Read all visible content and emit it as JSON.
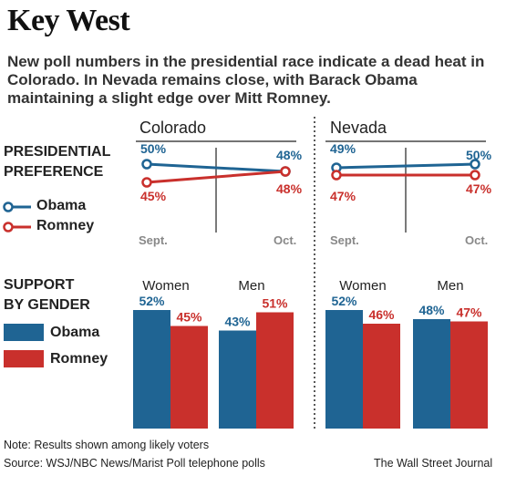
{
  "header": {
    "title": "Key West",
    "subtitle": "New poll numbers in the presidential race indicate a dead heat in Colorado. In Nevada remains close, with Barack Obama maintaining a slight edge over Mitt Romney."
  },
  "sections": {
    "preference_label_line1": "PRESIDENTIAL",
    "preference_label_line2": "PREFERENCE",
    "gender_label_line1": "SUPPORT",
    "gender_label_line2": "BY GENDER"
  },
  "legend": {
    "obama": "Obama",
    "romney": "Romney"
  },
  "colors": {
    "obama": "#1f6493",
    "romney": "#c9302c",
    "divider": "#222222",
    "tick": "#888888"
  },
  "chart_data": [
    {
      "type": "line",
      "state": "Colorado",
      "x": [
        "Sept.",
        "Oct."
      ],
      "series": [
        {
          "name": "Obama",
          "values": [
            50,
            48
          ],
          "labels": [
            "50%",
            "48%"
          ]
        },
        {
          "name": "Romney",
          "values": [
            45,
            48
          ],
          "labels": [
            "45%",
            "48%"
          ]
        }
      ]
    },
    {
      "type": "line",
      "state": "Nevada",
      "x": [
        "Sept.",
        "Oct."
      ],
      "series": [
        {
          "name": "Obama",
          "values": [
            49,
            50
          ],
          "labels": [
            "49%",
            "50%"
          ]
        },
        {
          "name": "Romney",
          "values": [
            47,
            47
          ],
          "labels": [
            "47%",
            "47%"
          ]
        }
      ]
    },
    {
      "type": "bar",
      "state": "Colorado",
      "categories": [
        "Women",
        "Men"
      ],
      "series": [
        {
          "name": "Obama",
          "values": [
            52,
            43
          ],
          "labels": [
            "52%",
            "43%"
          ]
        },
        {
          "name": "Romney",
          "values": [
            45,
            51
          ],
          "labels": [
            "45%",
            "51%"
          ]
        }
      ]
    },
    {
      "type": "bar",
      "state": "Nevada",
      "categories": [
        "Women",
        "Men"
      ],
      "series": [
        {
          "name": "Obama",
          "values": [
            52,
            48
          ],
          "labels": [
            "52%",
            "48%"
          ]
        },
        {
          "name": "Romney",
          "values": [
            46,
            47
          ],
          "labels": [
            "46%",
            "47%"
          ]
        }
      ]
    }
  ],
  "footer": {
    "note": "Note: Results shown among likely voters",
    "source": "Source: WSJ/NBC News/Marist Poll telephone polls",
    "credit": "The Wall Street Journal"
  }
}
